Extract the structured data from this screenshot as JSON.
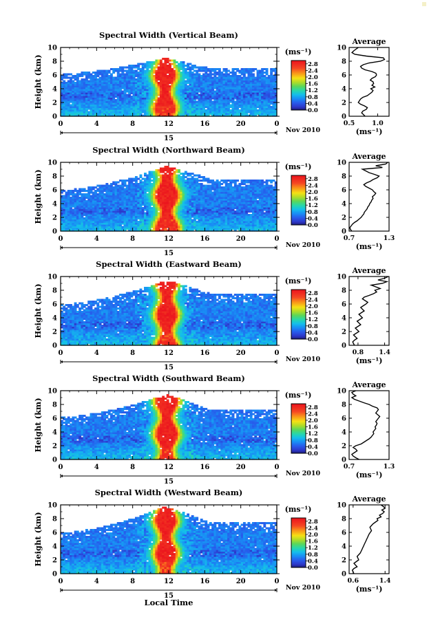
{
  "figure": {
    "xlabel": "Local Time",
    "month_label": "Nov 2010",
    "day_label": "15",
    "ylabel": "Height (km)",
    "colorbar_unit": "(ms⁻¹)",
    "avg_title": "Average",
    "avg_xlabel": "(ms⁻¹)"
  },
  "chart_data": [
    {
      "type": "heatmap",
      "title": "Spectral Width (Vertical Beam)",
      "xlabel": "",
      "ylabel": "Height (km)",
      "xlim": [
        0,
        24
      ],
      "ylim": [
        0,
        10
      ],
      "xticks": [
        "0",
        "4",
        "8",
        "12",
        "16",
        "20",
        "0"
      ],
      "yticks": [
        "0",
        "2",
        "4",
        "6",
        "8",
        "10"
      ],
      "colorbar": {
        "unit": "(ms⁻¹)",
        "ticks": [
          "0.0",
          "0.4",
          "0.8",
          "1.2",
          "1.6",
          "2.0",
          "2.4",
          "2.8"
        ],
        "range": [
          0,
          3
        ]
      },
      "field": {
        "mid_hour": 11.6,
        "core_halfwidth_h": 0.9,
        "top_base_km": 6.2,
        "top_mid_km": 8.5,
        "top_end_km": 7.0
      },
      "profile": {
        "title": "Average",
        "xlabel": "(ms⁻¹)",
        "xlim": [
          0.5,
          1.2
        ],
        "ylim": [
          0,
          10
        ],
        "xticks": [
          "0.5",
          "1.0"
        ],
        "x": [
          0.78,
          0.75,
          0.72,
          0.74,
          0.8,
          0.82,
          0.77,
          0.7,
          0.66,
          0.68,
          0.7,
          0.74,
          0.82,
          0.86,
          0.9,
          0.92,
          0.88,
          0.95,
          0.9,
          0.93,
          0.92,
          0.87,
          0.9,
          0.96,
          0.98,
          0.97,
          0.9,
          0.78,
          0.72,
          0.7,
          0.75,
          0.85,
          1.05,
          1.12,
          1.1,
          0.8,
          0.6,
          0.55,
          0.58,
          0.62,
          0.66
        ],
        "y": [
          0.0,
          0.25,
          0.5,
          0.75,
          1.0,
          1.25,
          1.5,
          1.75,
          2.0,
          2.25,
          2.5,
          2.75,
          3.0,
          3.25,
          3.5,
          3.75,
          4.0,
          4.25,
          4.5,
          4.75,
          5.0,
          5.25,
          5.5,
          5.75,
          6.0,
          6.25,
          6.5,
          6.75,
          7.0,
          7.25,
          7.5,
          7.75,
          8.0,
          8.25,
          8.5,
          8.75,
          9.0,
          9.25,
          9.5,
          9.75,
          10.0
        ]
      }
    },
    {
      "type": "heatmap",
      "title": "Spectral Width (Northward Beam)",
      "xlabel": "",
      "ylabel": "Height (km)",
      "xlim": [
        0,
        24
      ],
      "ylim": [
        0,
        10
      ],
      "xticks": [
        "0",
        "4",
        "8",
        "12",
        "16",
        "20",
        "0"
      ],
      "yticks": [
        "0",
        "2",
        "4",
        "6",
        "8",
        "10"
      ],
      "colorbar": {
        "unit": "(ms⁻¹)",
        "ticks": [
          "0.0",
          "0.4",
          "0.8",
          "1.2",
          "1.6",
          "2.0",
          "2.4",
          "2.8"
        ],
        "range": [
          0,
          3
        ]
      },
      "field": {
        "mid_hour": 11.8,
        "core_halfwidth_h": 1.0,
        "top_base_km": 6.0,
        "top_mid_km": 9.5,
        "top_end_km": 7.6
      },
      "profile": {
        "title": "Average",
        "xlabel": "(ms⁻¹)",
        "xlim": [
          0.7,
          1.3
        ],
        "ylim": [
          0,
          10
        ],
        "xticks": [
          "0.7",
          "1.3"
        ],
        "x": [
          0.74,
          0.72,
          0.71,
          0.73,
          0.75,
          0.78,
          0.82,
          0.85,
          0.88,
          0.9,
          0.92,
          0.93,
          0.95,
          0.97,
          0.98,
          1.0,
          1.01,
          1.03,
          1.04,
          1.06,
          1.05,
          1.08,
          1.1,
          1.07,
          1.05,
          1.0,
          0.95,
          0.92,
          0.96,
          1.02,
          1.06,
          1.12,
          1.15,
          1.08,
          1.0,
          0.95,
          0.9,
          1.2,
          1.1,
          1.25,
          1.28
        ],
        "y": [
          0.0,
          0.25,
          0.5,
          0.75,
          1.0,
          1.25,
          1.5,
          1.75,
          2.0,
          2.25,
          2.5,
          2.75,
          3.0,
          3.25,
          3.5,
          3.75,
          4.0,
          4.25,
          4.5,
          4.75,
          5.0,
          5.25,
          5.5,
          5.75,
          6.0,
          6.25,
          6.5,
          6.75,
          7.0,
          7.25,
          7.5,
          7.75,
          8.0,
          8.25,
          8.5,
          8.75,
          9.0,
          9.25,
          9.5,
          9.75,
          10.0
        ]
      }
    },
    {
      "type": "heatmap",
      "title": "Spectral Width (Eastward Beam)",
      "xlabel": "",
      "ylabel": "Height (km)",
      "xlim": [
        0,
        24
      ],
      "ylim": [
        0,
        10
      ],
      "xticks": [
        "0",
        "4",
        "8",
        "12",
        "16",
        "20",
        "0"
      ],
      "yticks": [
        "0",
        "2",
        "4",
        "6",
        "8",
        "10"
      ],
      "colorbar": {
        "unit": "(ms⁻¹)",
        "ticks": [
          "0.0",
          "0.4",
          "0.8",
          "1.2",
          "1.6",
          "2.0",
          "2.4",
          "2.8"
        ],
        "range": [
          0,
          3
        ]
      },
      "field": {
        "mid_hour": 11.8,
        "core_halfwidth_h": 0.9,
        "top_base_km": 6.0,
        "top_mid_km": 9.5,
        "top_end_km": 7.5
      },
      "profile": {
        "title": "Average",
        "xlabel": "(ms⁻¹)",
        "xlim": [
          0.6,
          1.5
        ],
        "ylim": [
          0,
          10
        ],
        "xticks": [
          "0.8",
          "1.4"
        ],
        "x": [
          0.72,
          0.7,
          0.68,
          0.72,
          0.78,
          0.74,
          0.7,
          0.76,
          0.82,
          0.78,
          0.74,
          0.8,
          0.86,
          0.82,
          0.78,
          0.84,
          0.9,
          0.86,
          0.82,
          0.88,
          0.94,
          0.9,
          0.86,
          0.92,
          0.98,
          1.02,
          0.96,
          0.9,
          0.94,
          1.05,
          1.15,
          1.22,
          1.18,
          1.3,
          1.2,
          1.1,
          1.35,
          1.45,
          1.25,
          1.4,
          1.48
        ],
        "y": [
          0.0,
          0.25,
          0.5,
          0.75,
          1.0,
          1.25,
          1.5,
          1.75,
          2.0,
          2.25,
          2.5,
          2.75,
          3.0,
          3.25,
          3.5,
          3.75,
          4.0,
          4.25,
          4.5,
          4.75,
          5.0,
          5.25,
          5.5,
          5.75,
          6.0,
          6.25,
          6.5,
          6.75,
          7.0,
          7.25,
          7.5,
          7.75,
          8.0,
          8.25,
          8.5,
          8.75,
          9.0,
          9.25,
          9.5,
          9.75,
          10.0
        ]
      }
    },
    {
      "type": "heatmap",
      "title": "Spectral Width (Southward Beam)",
      "xlabel": "",
      "ylabel": "Height (km)",
      "xlim": [
        0,
        24
      ],
      "ylim": [
        0,
        10
      ],
      "xticks": [
        "0",
        "4",
        "8",
        "12",
        "16",
        "20",
        "0"
      ],
      "yticks": [
        "0",
        "2",
        "4",
        "6",
        "8",
        "10"
      ],
      "colorbar": {
        "unit": "(ms⁻¹)",
        "ticks": [
          "0.0",
          "0.4",
          "0.8",
          "1.2",
          "1.6",
          "2.0",
          "2.4",
          "2.8"
        ],
        "range": [
          0,
          3
        ]
      },
      "field": {
        "mid_hour": 11.8,
        "core_halfwidth_h": 0.95,
        "top_base_km": 6.2,
        "top_mid_km": 9.5,
        "top_end_km": 7.2
      },
      "profile": {
        "title": "Average",
        "xlabel": "(ms⁻¹)",
        "xlim": [
          0.7,
          1.3
        ],
        "ylim": [
          0,
          10
        ],
        "xticks": [
          "0.7",
          "1.3"
        ],
        "x": [
          0.85,
          0.8,
          0.76,
          0.74,
          0.78,
          0.82,
          0.8,
          0.76,
          0.8,
          0.88,
          0.92,
          0.96,
          1.0,
          1.03,
          1.05,
          1.07,
          1.06,
          1.08,
          1.1,
          1.09,
          1.11,
          1.12,
          1.1,
          1.12,
          1.14,
          1.16,
          1.13,
          1.1,
          1.12,
          1.14,
          1.12,
          1.05,
          1.0,
          0.92,
          0.85,
          0.78,
          0.74,
          0.8,
          0.76,
          0.74,
          0.8
        ],
        "y": [
          0.0,
          0.25,
          0.5,
          0.75,
          1.0,
          1.25,
          1.5,
          1.75,
          2.0,
          2.25,
          2.5,
          2.75,
          3.0,
          3.25,
          3.5,
          3.75,
          4.0,
          4.25,
          4.5,
          4.75,
          5.0,
          5.25,
          5.5,
          5.75,
          6.0,
          6.25,
          6.5,
          6.75,
          7.0,
          7.25,
          7.5,
          7.75,
          8.0,
          8.25,
          8.5,
          8.75,
          9.0,
          9.25,
          9.5,
          9.75,
          10.0
        ]
      }
    },
    {
      "type": "heatmap",
      "title": "Spectral Width (Westward Beam)",
      "xlabel": "Local Time",
      "ylabel": "Height (km)",
      "xlim": [
        0,
        24
      ],
      "ylim": [
        0,
        10
      ],
      "xticks": [
        "0",
        "4",
        "8",
        "12",
        "16",
        "20",
        "0"
      ],
      "yticks": [
        "0",
        "2",
        "4",
        "6",
        "8",
        "10"
      ],
      "colorbar": {
        "unit": "(ms⁻¹)",
        "ticks": [
          "0.0",
          "0.4",
          "0.8",
          "1.2",
          "1.6",
          "2.0",
          "2.4",
          "2.8"
        ],
        "range": [
          0,
          3
        ]
      },
      "field": {
        "mid_hour": 11.7,
        "core_halfwidth_h": 0.9,
        "top_base_km": 6.0,
        "top_mid_km": 9.8,
        "top_end_km": 7.4
      },
      "profile": {
        "title": "Average",
        "xlabel": "(ms⁻¹)",
        "xlim": [
          0.5,
          1.5
        ],
        "ylim": [
          0,
          10
        ],
        "xticks": [
          "0.6",
          "1.4"
        ],
        "x": [
          0.62,
          0.6,
          0.58,
          0.62,
          0.7,
          0.66,
          0.62,
          0.68,
          0.74,
          0.72,
          0.7,
          0.74,
          0.78,
          0.8,
          0.82,
          0.84,
          0.86,
          0.88,
          0.9,
          0.92,
          0.94,
          0.96,
          0.98,
          1.0,
          1.03,
          1.06,
          1.04,
          1.02,
          1.06,
          1.1,
          1.16,
          1.22,
          1.2,
          1.3,
          1.26,
          1.34,
          1.38,
          1.32,
          1.4,
          1.36,
          1.3
        ],
        "y": [
          0.0,
          0.25,
          0.5,
          0.75,
          1.0,
          1.25,
          1.5,
          1.75,
          2.0,
          2.25,
          2.5,
          2.75,
          3.0,
          3.25,
          3.5,
          3.75,
          4.0,
          4.25,
          4.5,
          4.75,
          5.0,
          5.25,
          5.5,
          5.75,
          6.0,
          6.25,
          6.5,
          6.75,
          7.0,
          7.25,
          7.5,
          7.75,
          8.0,
          8.25,
          8.5,
          8.75,
          9.0,
          9.25,
          9.5,
          9.75,
          10.0
        ]
      }
    }
  ]
}
